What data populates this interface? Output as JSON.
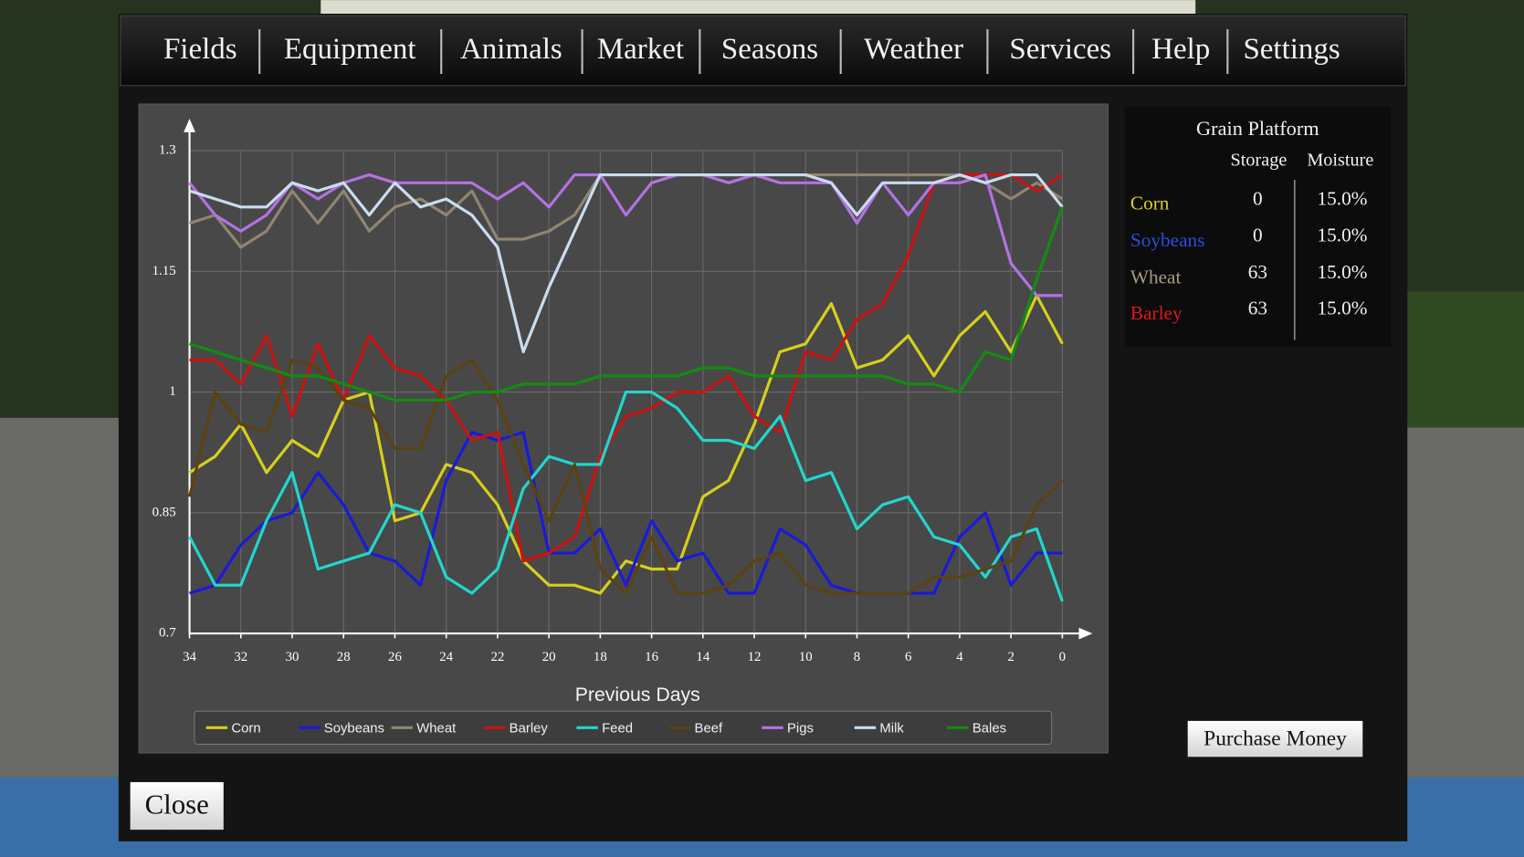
{
  "menu": [
    "Fields",
    "Equipment",
    "Animals",
    "Market",
    "Seasons",
    "Weather",
    "Services",
    "Help",
    "Settings"
  ],
  "chart_data": {
    "type": "line",
    "xlabel": "Previous Days",
    "x": [
      34,
      33,
      32,
      31,
      30,
      29,
      28,
      27,
      26,
      25,
      24,
      23,
      22,
      21,
      20,
      19,
      18,
      17,
      16,
      15,
      14,
      13,
      12,
      11,
      10,
      9,
      8,
      7,
      6,
      5,
      4,
      3,
      2,
      1,
      0
    ],
    "xlim": [
      34,
      0
    ],
    "xticks": [
      34,
      32,
      30,
      28,
      26,
      24,
      22,
      20,
      18,
      16,
      14,
      12,
      10,
      8,
      6,
      4,
      2,
      0
    ],
    "ylim": [
      0.7,
      1.3
    ],
    "yticks": [
      0.7,
      0.85,
      1,
      1.15,
      1.3
    ],
    "grid": true,
    "series": [
      {
        "name": "Corn",
        "color": "#d6cf1c",
        "values": [
          0.9,
          0.92,
          0.96,
          0.9,
          0.94,
          0.92,
          0.99,
          1.0,
          0.84,
          0.85,
          0.91,
          0.9,
          0.86,
          0.79,
          0.76,
          0.76,
          0.75,
          0.79,
          0.78,
          0.78,
          0.87,
          0.89,
          0.96,
          1.05,
          1.06,
          1.11,
          1.03,
          1.04,
          1.07,
          1.02,
          1.07,
          1.1,
          1.05,
          1.12,
          1.06
        ]
      },
      {
        "name": "Soybeans",
        "color": "#1a1ad8",
        "values": [
          0.75,
          0.76,
          0.81,
          0.84,
          0.85,
          0.9,
          0.86,
          0.8,
          0.79,
          0.76,
          0.89,
          0.95,
          0.94,
          0.95,
          0.8,
          0.8,
          0.83,
          0.76,
          0.84,
          0.79,
          0.8,
          0.75,
          0.75,
          0.83,
          0.81,
          0.76,
          0.75,
          0.75,
          0.75,
          0.75,
          0.82,
          0.85,
          0.76,
          0.8,
          0.8
        ]
      },
      {
        "name": "Wheat",
        "color": "#8f8572",
        "values": [
          1.21,
          1.22,
          1.18,
          1.2,
          1.25,
          1.21,
          1.25,
          1.2,
          1.23,
          1.24,
          1.22,
          1.25,
          1.19,
          1.19,
          1.2,
          1.22,
          1.27,
          1.27,
          1.27,
          1.27,
          1.27,
          1.27,
          1.27,
          1.27,
          1.27,
          1.27,
          1.27,
          1.27,
          1.27,
          1.27,
          1.27,
          1.26,
          1.24,
          1.26,
          1.24
        ]
      },
      {
        "name": "Barley",
        "color": "#cc1212",
        "values": [
          1.04,
          1.04,
          1.01,
          1.07,
          0.97,
          1.06,
          0.99,
          1.07,
          1.03,
          1.02,
          0.99,
          0.94,
          0.95,
          0.79,
          0.8,
          0.82,
          0.92,
          0.97,
          0.98,
          1.0,
          1.0,
          1.02,
          0.97,
          0.95,
          1.05,
          1.04,
          1.09,
          1.11,
          1.17,
          1.26,
          1.27,
          1.27,
          1.27,
          1.25,
          1.27
        ]
      },
      {
        "name": "Feed",
        "color": "#22d6cc",
        "values": [
          0.82,
          0.76,
          0.76,
          0.84,
          0.9,
          0.78,
          0.79,
          0.8,
          0.86,
          0.85,
          0.77,
          0.75,
          0.78,
          0.88,
          0.92,
          0.91,
          0.91,
          1.0,
          1.0,
          0.98,
          0.94,
          0.94,
          0.93,
          0.97,
          0.89,
          0.9,
          0.83,
          0.86,
          0.87,
          0.82,
          0.81,
          0.77,
          0.82,
          0.83,
          0.74
        ]
      },
      {
        "name": "Beef",
        "color": "#5c4210",
        "values": [
          0.87,
          1.0,
          0.96,
          0.95,
          1.04,
          1.03,
          0.99,
          0.98,
          0.93,
          0.93,
          1.02,
          1.04,
          0.99,
          0.91,
          0.84,
          0.91,
          0.78,
          0.75,
          0.82,
          0.75,
          0.75,
          0.76,
          0.79,
          0.8,
          0.76,
          0.75,
          0.75,
          0.75,
          0.75,
          0.77,
          0.77,
          0.78,
          0.79,
          0.86,
          0.89
        ]
      },
      {
        "name": "Pigs",
        "color": "#b372e2",
        "values": [
          1.26,
          1.22,
          1.2,
          1.22,
          1.26,
          1.24,
          1.26,
          1.27,
          1.26,
          1.26,
          1.26,
          1.26,
          1.24,
          1.26,
          1.23,
          1.27,
          1.27,
          1.22,
          1.26,
          1.27,
          1.27,
          1.26,
          1.27,
          1.26,
          1.26,
          1.26,
          1.21,
          1.26,
          1.22,
          1.26,
          1.26,
          1.27,
          1.16,
          1.12,
          1.12
        ]
      },
      {
        "name": "Milk",
        "color": "#cadcf0",
        "values": [
          1.25,
          1.24,
          1.23,
          1.23,
          1.26,
          1.25,
          1.26,
          1.22,
          1.26,
          1.23,
          1.24,
          1.22,
          1.18,
          1.05,
          1.13,
          1.2,
          1.27,
          1.27,
          1.27,
          1.27,
          1.27,
          1.27,
          1.27,
          1.27,
          1.27,
          1.26,
          1.22,
          1.26,
          1.26,
          1.26,
          1.27,
          1.26,
          1.27,
          1.27,
          1.23
        ]
      },
      {
        "name": "Bales",
        "color": "#128c12",
        "values": [
          1.06,
          1.05,
          1.04,
          1.03,
          1.02,
          1.02,
          1.01,
          1.0,
          0.99,
          0.99,
          0.99,
          1.0,
          1.0,
          1.01,
          1.01,
          1.01,
          1.02,
          1.02,
          1.02,
          1.02,
          1.03,
          1.03,
          1.02,
          1.02,
          1.02,
          1.02,
          1.02,
          1.02,
          1.01,
          1.01,
          1.0,
          1.05,
          1.04,
          1.14,
          1.23
        ]
      }
    ]
  },
  "grain_platform": {
    "title": "Grain Platform",
    "columns": [
      "Storage",
      "Moisture"
    ],
    "rows": [
      {
        "name": "Corn",
        "color": "#d8cf2a",
        "storage": "0",
        "moisture": "15.0%"
      },
      {
        "name": "Soybeans",
        "color": "#2a4ee0",
        "storage": "0",
        "moisture": "15.0%"
      },
      {
        "name": "Wheat",
        "color": "#a89a80",
        "storage": "63",
        "moisture": "15.0%"
      },
      {
        "name": "Barley",
        "color": "#e01818",
        "storage": "63",
        "moisture": "15.0%"
      }
    ]
  },
  "buttons": {
    "purchase": "Purchase Money",
    "close": "Close"
  }
}
